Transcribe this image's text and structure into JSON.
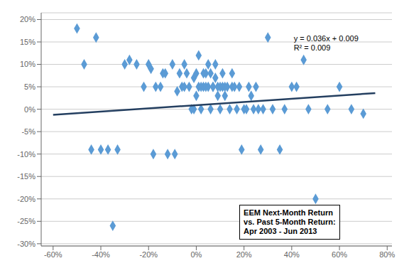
{
  "chart_data": {
    "type": "scatter",
    "series": [
      {
        "type": "scatter",
        "color": "#5B9BD5",
        "marker": "diamond",
        "x": [
          -0.5,
          -0.47,
          -0.44,
          -0.42,
          -0.4,
          -0.37,
          -0.35,
          -0.33,
          -0.3,
          -0.28,
          -0.25,
          -0.22,
          -0.2,
          -0.19,
          -0.18,
          -0.17,
          -0.15,
          -0.14,
          -0.13,
          -0.12,
          -0.1,
          -0.09,
          -0.08,
          -0.07,
          -0.06,
          -0.05,
          -0.05,
          -0.04,
          -0.03,
          -0.02,
          -0.01,
          -0.01,
          0.0,
          0.0,
          0.01,
          0.01,
          0.02,
          0.02,
          0.03,
          0.03,
          0.04,
          0.04,
          0.05,
          0.05,
          0.06,
          0.06,
          0.07,
          0.07,
          0.08,
          0.08,
          0.09,
          0.09,
          0.1,
          0.1,
          0.11,
          0.11,
          0.12,
          0.12,
          0.13,
          0.14,
          0.15,
          0.15,
          0.16,
          0.17,
          0.18,
          0.19,
          0.2,
          0.21,
          0.22,
          0.23,
          0.24,
          0.25,
          0.26,
          0.27,
          0.28,
          0.3,
          0.32,
          0.35,
          0.37,
          0.4,
          0.42,
          0.45,
          0.47,
          0.5,
          0.55,
          0.6,
          0.65,
          0.7
        ],
        "values": [
          0.18,
          0.1,
          -0.09,
          0.16,
          -0.09,
          -0.09,
          -0.26,
          -0.09,
          0.1,
          0.11,
          0.1,
          0.05,
          0.1,
          0.09,
          -0.1,
          0.05,
          0.05,
          0.08,
          0.08,
          -0.1,
          0.1,
          -0.1,
          0.04,
          0.08,
          0.05,
          0.05,
          0.1,
          0.08,
          0.05,
          0.0,
          0.0,
          0.07,
          0.03,
          0.08,
          0.05,
          0.12,
          0.0,
          0.05,
          0.05,
          0.08,
          0.05,
          0.08,
          0.05,
          0.1,
          0.0,
          0.08,
          0.05,
          0.05,
          0.07,
          0.1,
          0.03,
          0.05,
          0.0,
          0.05,
          0.05,
          0.08,
          0.03,
          0.05,
          0.05,
          0.0,
          0.08,
          0.05,
          0.05,
          0.0,
          0.05,
          -0.09,
          0.0,
          0.0,
          0.05,
          0.03,
          0.0,
          0.05,
          0.0,
          -0.09,
          0.0,
          0.16,
          0.0,
          -0.09,
          0.0,
          0.05,
          0.05,
          0.11,
          0.0,
          -0.2,
          0.0,
          0.05,
          0.0,
          -0.01
        ]
      },
      {
        "type": "line",
        "color": "#243F60",
        "x": [
          -0.6,
          0.75
        ],
        "values": [
          -0.0126,
          0.036
        ]
      }
    ],
    "xlim": [
      -0.65,
      0.82
    ],
    "xticks": [
      {
        "value": -0.6,
        "label": "-60%"
      },
      {
        "value": -0.4,
        "label": "-40%"
      },
      {
        "value": -0.2,
        "label": "-20%"
      },
      {
        "value": 0.0,
        "label": "0%"
      },
      {
        "value": 0.2,
        "label": "20%"
      },
      {
        "value": 0.4,
        "label": "40%"
      },
      {
        "value": 0.6,
        "label": "60%"
      },
      {
        "value": 0.8,
        "label": "80%"
      }
    ],
    "ylim": [
      -0.305,
      0.215
    ],
    "yticks": [
      {
        "value": -0.3,
        "label": "-30%"
      },
      {
        "value": -0.25,
        "label": "-25%"
      },
      {
        "value": -0.2,
        "label": "-20%"
      },
      {
        "value": -0.15,
        "label": "-15%"
      },
      {
        "value": -0.1,
        "label": "-10%"
      },
      {
        "value": -0.05,
        "label": "-5%"
      },
      {
        "value": 0.0,
        "label": "0%"
      },
      {
        "value": 0.05,
        "label": "5%"
      },
      {
        "value": 0.1,
        "label": "10%"
      },
      {
        "value": 0.15,
        "label": "15%"
      },
      {
        "value": 0.2,
        "label": "20%"
      }
    ],
    "grid": "y",
    "annotations": [
      "y = 0.036x + 0.009\nR² = 0.009",
      "EEM Next-Month Return\nvs. Past 5-Month Return:\nApr 2003 - Jun 2013"
    ]
  }
}
